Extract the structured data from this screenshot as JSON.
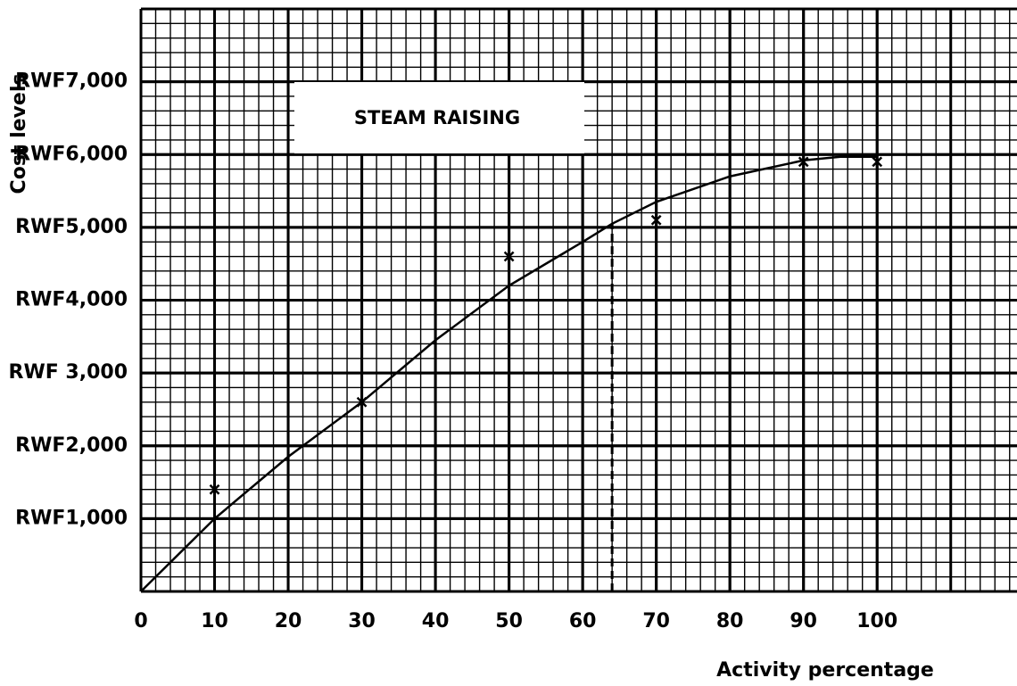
{
  "chart_data": {
    "type": "scatter",
    "title": "STEAM RAISING",
    "x_label": "Activity percentage",
    "y_label": "Cost levels",
    "xlim": [
      0,
      119
    ],
    "ylim": [
      0,
      8000
    ],
    "xticks": [
      0,
      10,
      20,
      30,
      40,
      50,
      60,
      70,
      80,
      90,
      100
    ],
    "yticks": [
      {
        "value": 1000,
        "label": "RWF1,000"
      },
      {
        "value": 2000,
        "label": "RWF2,000"
      },
      {
        "value": 3000,
        "label": "RWF 3,000"
      },
      {
        "value": 4000,
        "label": "RWF4,000"
      },
      {
        "value": 5000,
        "label": "RWF5,000"
      },
      {
        "value": 6000,
        "label": "RWF6,000"
      },
      {
        "value": 7000,
        "label": "RWF7,000"
      }
    ],
    "grid": true,
    "minor_grid": {
      "x": 2,
      "y": 200
    },
    "series": [
      {
        "type": "scatter",
        "marker": "x",
        "color": "#000000",
        "x": [
          10,
          30,
          50,
          70,
          90,
          100
        ],
        "values": [
          1400,
          2600,
          4600,
          5100,
          5900,
          5900
        ]
      },
      {
        "type": "line",
        "color": "#000000",
        "x": [
          0,
          10,
          20,
          30,
          40,
          50,
          60,
          64,
          70,
          80,
          90,
          95,
          100
        ],
        "values": [
          0,
          1000,
          1850,
          2600,
          3450,
          4200,
          4800,
          5050,
          5350,
          5700,
          5920,
          5970,
          5970
        ]
      }
    ],
    "reference_line": {
      "x": 64,
      "y": 5050,
      "style": "dashed"
    }
  }
}
